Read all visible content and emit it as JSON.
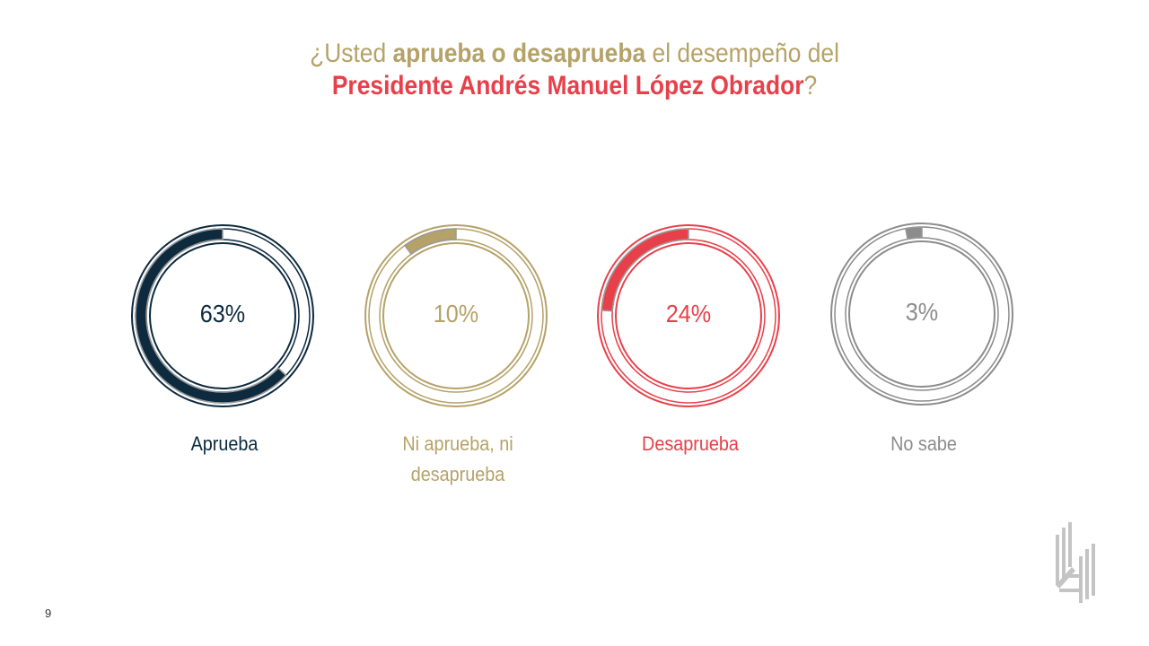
{
  "title": {
    "pre": "¿Usted ",
    "bold1": "aprueba o desaprueba",
    "mid": " el desempeño del",
    "bold2": "Presidente Andrés Manuel López Obrador",
    "post": "?"
  },
  "chart_data": {
    "type": "pie",
    "title": "¿Usted aprueba o desaprueba el desempeño del Presidente Andrés Manuel López Obrador?",
    "categories": [
      "Aprueba",
      "Ni aprueba, ni desaprueba",
      "Desaprueba",
      "No sabe"
    ],
    "values": [
      63,
      10,
      24,
      3
    ],
    "labels": [
      "63%",
      "10%",
      "24%",
      "3%"
    ],
    "colors": [
      "#0d2a3e",
      "#b5a268",
      "#e8404a",
      "#8c8c8c"
    ]
  },
  "page_number": "9"
}
